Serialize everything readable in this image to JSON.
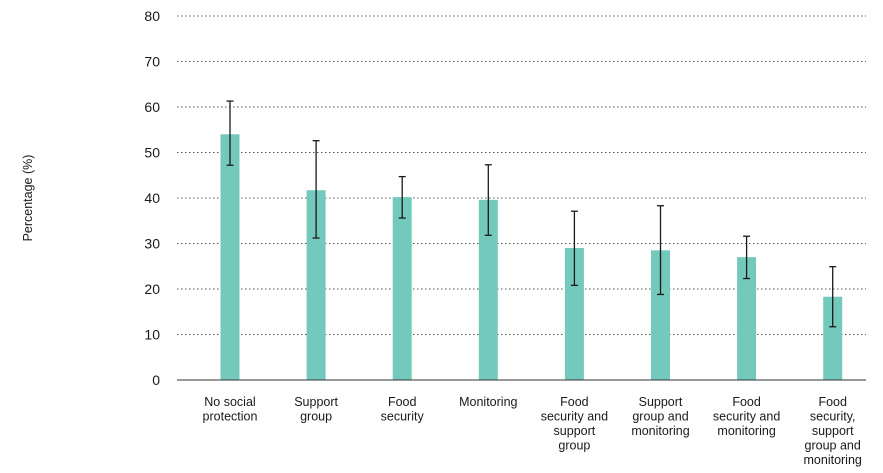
{
  "chart_data": {
    "type": "bar",
    "title": "",
    "xlabel": "",
    "ylabel": "Percentage (%)",
    "ylim": [
      0,
      80
    ],
    "yticks": [
      0,
      10,
      20,
      30,
      40,
      50,
      60,
      70,
      80
    ],
    "grid": "horizontal dotted",
    "bar_color": "#74c9bd",
    "errorbar_color": "#1a1a1a",
    "categories": [
      [
        "No social",
        "protection"
      ],
      [
        "Support",
        "group"
      ],
      [
        "Food",
        "security"
      ],
      [
        "Monitoring"
      ],
      [
        "Food",
        "security and",
        "support",
        "group"
      ],
      [
        "Support",
        "group and",
        "monitoring"
      ],
      [
        "Food",
        "security and",
        "monitoring"
      ],
      [
        "Food",
        "security,",
        "support",
        "group and",
        "monitoring"
      ]
    ],
    "values": [
      54,
      41.7,
      40.2,
      39.6,
      29,
      28.5,
      27,
      18.3
    ],
    "error_low": [
      47.2,
      31.2,
      35.6,
      31.8,
      20.8,
      18.8,
      22.3,
      11.7
    ],
    "error_high": [
      61.3,
      52.6,
      44.7,
      47.3,
      37.1,
      38.3,
      31.6,
      24.9
    ]
  }
}
